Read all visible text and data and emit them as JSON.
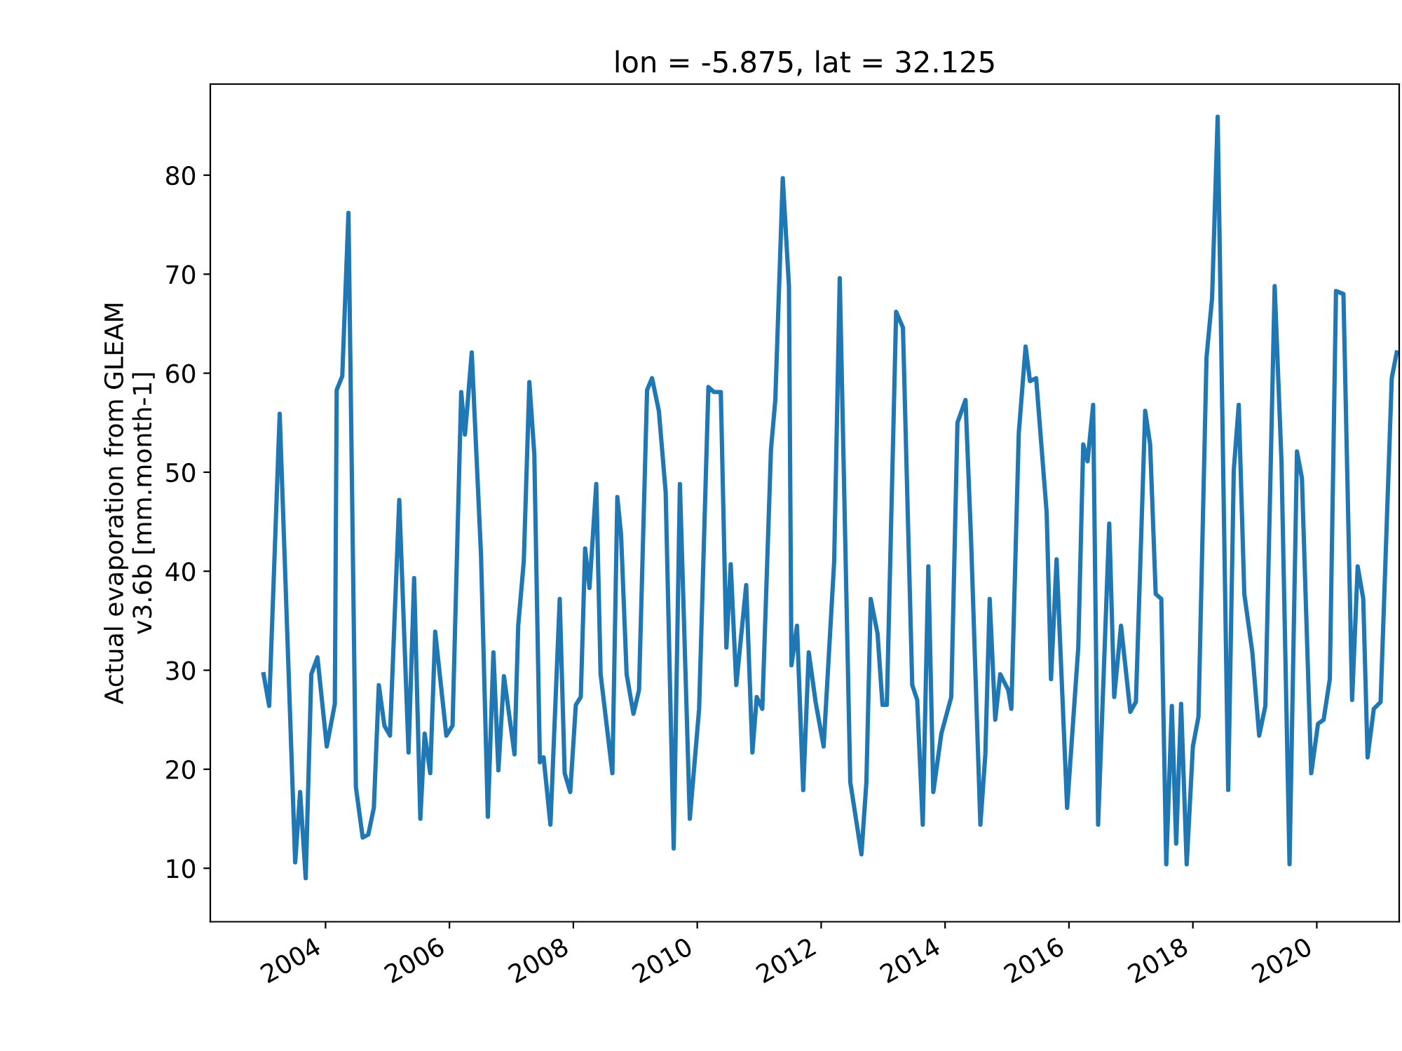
{
  "chart_data": {
    "type": "line",
    "title": "lon = -5.875, lat = 32.125",
    "ylabel": "Actual evaporation from GLEAM\nv3.6b [mm.month-1]",
    "xlim": [
      2002.14,
      2021.33
    ],
    "xticks": [
      2004,
      2006,
      2008,
      2010,
      2012,
      2014,
      2016,
      2018,
      2020
    ],
    "ylim": [
      4.6,
      89.2
    ],
    "yticks": [
      10,
      20,
      30,
      40,
      50,
      60,
      70,
      80
    ],
    "grid": false,
    "series": [
      {
        "color": "#1f77b4",
        "x": [
          2003.0,
          2003.09,
          2003.26,
          2003.51,
          2003.59,
          2003.68,
          2003.77,
          2003.87,
          2004.02,
          2004.15,
          2004.18,
          2004.27,
          2004.37,
          2004.49,
          2004.6,
          2004.69,
          2004.78,
          2004.86,
          2004.95,
          2005.04,
          2005.19,
          2005.34,
          2005.43,
          2005.53,
          2005.6,
          2005.69,
          2005.77,
          2005.95,
          2006.05,
          2006.19,
          2006.25,
          2006.29,
          2006.36,
          2006.51,
          2006.62,
          2006.71,
          2006.79,
          2006.88,
          2007.05,
          2007.11,
          2007.2,
          2007.29,
          2007.37,
          2007.46,
          2007.52,
          2007.63,
          2007.78,
          2007.86,
          2007.95,
          2008.04,
          2008.12,
          2008.19,
          2008.26,
          2008.37,
          2008.44,
          2008.63,
          2008.71,
          2008.77,
          2008.86,
          2008.97,
          2009.06,
          2009.19,
          2009.27,
          2009.38,
          2009.49,
          2009.62,
          2009.72,
          2009.88,
          2010.03,
          2010.18,
          2010.27,
          2010.38,
          2010.47,
          2010.54,
          2010.63,
          2010.79,
          2010.89,
          2010.96,
          2011.05,
          2011.19,
          2011.26,
          2011.38,
          2011.48,
          2011.52,
          2011.61,
          2011.71,
          2011.8,
          2011.91,
          2012.04,
          2012.21,
          2012.3,
          2012.47,
          2012.65,
          2012.73,
          2012.8,
          2012.91,
          2012.99,
          2013.06,
          2013.21,
          2013.32,
          2013.47,
          2013.55,
          2013.64,
          2013.73,
          2013.81,
          2013.94,
          2014.1,
          2014.2,
          2014.33,
          2014.42,
          2014.57,
          2014.65,
          2014.72,
          2014.81,
          2014.89,
          2015.02,
          2015.07,
          2015.19,
          2015.3,
          2015.37,
          2015.47,
          2015.64,
          2015.71,
          2015.8,
          2015.97,
          2016.15,
          2016.23,
          2016.3,
          2016.39,
          2016.47,
          2016.65,
          2016.73,
          2016.84,
          2016.99,
          2017.08,
          2017.23,
          2017.31,
          2017.4,
          2017.49,
          2017.57,
          2017.66,
          2017.73,
          2017.81,
          2017.9,
          2018.0,
          2018.09,
          2018.22,
          2018.31,
          2018.4,
          2018.57,
          2018.66,
          2018.74,
          2018.83,
          2018.96,
          2019.07,
          2019.17,
          2019.32,
          2019.43,
          2019.56,
          2019.68,
          2019.76,
          2019.91,
          2020.02,
          2020.11,
          2020.21,
          2020.31,
          2020.43,
          2020.57,
          2020.66,
          2020.75,
          2020.82,
          2020.92,
          2021.03,
          2021.21,
          2021.29
        ],
        "values": [
          29.6,
          26.4,
          55.9,
          10.6,
          17.7,
          9.0,
          29.6,
          31.3,
          22.3,
          26.6,
          58.3,
          59.7,
          76.2,
          18.2,
          13.1,
          13.4,
          16.1,
          28.5,
          24.4,
          23.4,
          47.2,
          21.7,
          39.3,
          15.0,
          23.6,
          19.6,
          33.9,
          23.4,
          24.4,
          58.1,
          53.8,
          56.7,
          62.1,
          41.6,
          15.2,
          31.8,
          19.9,
          29.4,
          21.5,
          34.5,
          41.0,
          59.1,
          51.8,
          20.7,
          21.2,
          14.4,
          37.2,
          19.6,
          17.7,
          26.5,
          27.3,
          42.3,
          38.3,
          48.8,
          29.6,
          19.6,
          47.5,
          43.7,
          29.6,
          25.6,
          28.0,
          58.3,
          59.5,
          56.2,
          48.0,
          12.0,
          48.8,
          15.0,
          26.1,
          58.6,
          58.1,
          58.1,
          32.3,
          40.7,
          28.5,
          38.6,
          21.7,
          27.3,
          26.1,
          52.3,
          57.3,
          79.7,
          68.8,
          30.5,
          34.5,
          17.9,
          31.8,
          26.8,
          22.3,
          41.0,
          69.6,
          18.7,
          11.4,
          18.7,
          37.2,
          33.7,
          26.5,
          26.5,
          66.2,
          64.6,
          28.5,
          27.0,
          14.4,
          40.5,
          17.7,
          23.6,
          27.3,
          55.0,
          57.3,
          43.1,
          14.4,
          21.5,
          37.2,
          25.0,
          29.6,
          28.0,
          26.1,
          54.0,
          62.7,
          59.2,
          59.5,
          45.9,
          29.1,
          41.2,
          16.1,
          32.3,
          52.8,
          51.1,
          56.8,
          14.4,
          44.8,
          27.3,
          34.5,
          25.8,
          26.8,
          56.2,
          52.8,
          37.7,
          37.2,
          10.4,
          26.4,
          12.5,
          26.6,
          10.4,
          22.3,
          25.3,
          61.6,
          67.6,
          85.9,
          17.9,
          50.2,
          56.8,
          37.7,
          31.8,
          23.4,
          26.4,
          68.8,
          51.1,
          10.4,
          52.1,
          49.4,
          19.6,
          24.6,
          25.0,
          29.1,
          68.3,
          68.0,
          27.0,
          40.5,
          37.2,
          21.2,
          26.1,
          26.8,
          59.5,
          62.1
        ]
      }
    ]
  }
}
